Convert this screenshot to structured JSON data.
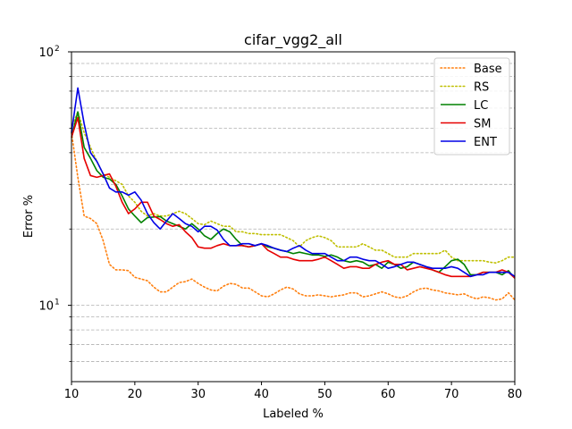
{
  "chart_data": {
    "type": "line",
    "title": "cifar_vgg2_all",
    "xlabel": "Labeled %",
    "ylabel": "Error %",
    "xlim": [
      10,
      80
    ],
    "ylim": [
      5,
      100
    ],
    "yscale": "log",
    "x_ticks": [
      "10",
      "20",
      "30",
      "40",
      "50",
      "60",
      "70",
      "80"
    ],
    "y_ticks": [
      {
        "value": 10,
        "base": "10",
        "exp": "1"
      },
      {
        "value": 100,
        "base": "10",
        "exp": "2"
      }
    ],
    "grid": "horizontal dashed (major and minor)",
    "legend_position": "top-right",
    "series": [
      {
        "name": "Base",
        "color": "#ff7f0e",
        "style": "dotted",
        "x": [
          10,
          11,
          12,
          13,
          14,
          15,
          16,
          17,
          18,
          19,
          20,
          21,
          22,
          23,
          24,
          25,
          26,
          27,
          28,
          29,
          30,
          31,
          32,
          33,
          34,
          35,
          36,
          37,
          38,
          39,
          40,
          41,
          42,
          43,
          44,
          45,
          46,
          47,
          48,
          49,
          50,
          51,
          52,
          53,
          54,
          55,
          56,
          57,
          58,
          59,
          60,
          61,
          62,
          63,
          64,
          65,
          66,
          67,
          68,
          69,
          70,
          71,
          72,
          73,
          74,
          75,
          76,
          77,
          78,
          79,
          80
        ],
        "values": [
          48,
          32,
          22.5,
          22,
          21,
          18,
          14.5,
          13.8,
          13.8,
          13.7,
          12.9,
          12.7,
          12.5,
          11.8,
          11.3,
          11.3,
          11.8,
          12.3,
          12.4,
          12.7,
          12.2,
          11.8,
          11.5,
          11.4,
          11.9,
          12.2,
          12.1,
          11.7,
          11.7,
          11.3,
          10.9,
          10.8,
          11.1,
          11.5,
          11.8,
          11.6,
          11.1,
          10.9,
          10.9,
          11.0,
          10.9,
          10.8,
          10.9,
          11.0,
          11.2,
          11.2,
          10.8,
          10.9,
          11.1,
          11.3,
          11.1,
          10.8,
          10.7,
          10.9,
          11.3,
          11.6,
          11.7,
          11.5,
          11.4,
          11.2,
          11.1,
          11.0,
          11.1,
          10.8,
          10.6,
          10.8,
          10.7,
          10.5,
          10.6,
          11.2,
          10.5
        ]
      },
      {
        "name": "RS",
        "color": "#bfbf00",
        "style": "dotted",
        "x": [
          10,
          11,
          12,
          13,
          14,
          15,
          16,
          17,
          18,
          19,
          20,
          21,
          22,
          23,
          24,
          25,
          26,
          27,
          28,
          29,
          30,
          31,
          32,
          33,
          34,
          35,
          36,
          37,
          38,
          39,
          40,
          41,
          42,
          43,
          44,
          45,
          46,
          47,
          48,
          49,
          50,
          51,
          52,
          53,
          54,
          55,
          56,
          57,
          58,
          59,
          60,
          61,
          62,
          63,
          64,
          65,
          66,
          67,
          68,
          69,
          70,
          71,
          72,
          73,
          74,
          75,
          76,
          77,
          78,
          79,
          80
        ],
        "values": [
          50,
          58,
          48,
          42,
          37,
          33,
          32,
          31,
          30,
          27,
          25.5,
          23.5,
          22.5,
          23,
          22.5,
          22.5,
          23,
          23.5,
          23,
          22,
          21,
          20.8,
          21.5,
          21,
          20.5,
          20.5,
          19.5,
          19.5,
          19.2,
          19.2,
          19,
          19,
          19,
          19,
          18.5,
          18,
          17,
          18,
          18.5,
          18.8,
          18.5,
          18,
          17,
          17,
          17,
          17,
          17.5,
          17,
          16.5,
          16.5,
          16,
          15.5,
          15.5,
          15.5,
          16,
          16,
          16,
          16,
          16,
          16.5,
          15.5,
          15,
          15,
          15,
          15,
          15,
          14.8,
          14.7,
          15,
          15.5,
          15.5
        ]
      },
      {
        "name": "LC",
        "color": "#008000",
        "style": "solid",
        "x": [
          10,
          11,
          12,
          13,
          14,
          15,
          16,
          17,
          18,
          19,
          20,
          21,
          22,
          23,
          24,
          25,
          26,
          27,
          28,
          29,
          30,
          31,
          32,
          33,
          34,
          35,
          36,
          37,
          38,
          39,
          40,
          41,
          42,
          43,
          44,
          45,
          46,
          47,
          48,
          49,
          50,
          51,
          52,
          53,
          54,
          55,
          56,
          57,
          58,
          59,
          60,
          61,
          62,
          63,
          64,
          65,
          66,
          67,
          68,
          69,
          70,
          71,
          72,
          73,
          74,
          75,
          76,
          77,
          78,
          79,
          80
        ],
        "values": [
          46,
          58,
          42,
          38,
          34,
          32,
          31.5,
          30,
          27,
          24,
          22.5,
          21.2,
          22.2,
          22.3,
          22.4,
          21.5,
          21,
          20.5,
          20,
          21,
          20,
          18.8,
          18.2,
          19.2,
          20,
          19.5,
          18.2,
          17.2,
          17,
          17.2,
          17.5,
          17,
          16.8,
          16.5,
          16.3,
          16,
          16.2,
          16,
          15.8,
          15.8,
          15.6,
          15.8,
          15.5,
          15,
          14.8,
          15,
          14.8,
          14.3,
          14.5,
          14,
          14.8,
          14.5,
          14,
          14.2,
          14.8,
          14.5,
          14.2,
          13.8,
          13.5,
          14.2,
          15,
          15.2,
          14.5,
          13.2,
          13.2,
          13.5,
          13.5,
          13.5,
          13.2,
          13.7,
          12.8
        ]
      },
      {
        "name": "SM",
        "color": "#e60000",
        "style": "solid",
        "x": [
          10,
          11,
          12,
          13,
          14,
          15,
          16,
          17,
          18,
          19,
          20,
          21,
          22,
          23,
          24,
          25,
          26,
          27,
          28,
          29,
          30,
          31,
          32,
          33,
          34,
          35,
          36,
          37,
          38,
          39,
          40,
          41,
          42,
          43,
          44,
          45,
          46,
          47,
          48,
          49,
          50,
          51,
          52,
          53,
          54,
          55,
          56,
          57,
          58,
          59,
          60,
          61,
          62,
          63,
          64,
          65,
          66,
          67,
          68,
          69,
          70,
          71,
          72,
          73,
          74,
          75,
          76,
          77,
          78,
          79,
          80
        ],
        "values": [
          46,
          55,
          38,
          32.5,
          32,
          32.5,
          33,
          29.5,
          25.5,
          23,
          24,
          25.5,
          25.5,
          22.5,
          21.8,
          21,
          20.5,
          20.8,
          19.5,
          18.5,
          17,
          16.8,
          16.8,
          17.2,
          17.5,
          17.2,
          17.2,
          17.2,
          17,
          17.2,
          17.5,
          16.5,
          16,
          15.5,
          15.5,
          15.2,
          15,
          15,
          15,
          15.2,
          15.5,
          15,
          14.5,
          14,
          14.2,
          14.2,
          14,
          14,
          14.5,
          14.8,
          15,
          14.5,
          14.5,
          13.8,
          14,
          14.2,
          14,
          13.8,
          13.5,
          13.2,
          13,
          13,
          13,
          13,
          13.2,
          13.5,
          13.5,
          13.5,
          13.8,
          13.5,
          12.8
        ]
      },
      {
        "name": "ENT",
        "color": "#0000e6",
        "style": "solid",
        "x": [
          10,
          11,
          12,
          13,
          14,
          15,
          16,
          17,
          18,
          19,
          20,
          21,
          22,
          23,
          24,
          25,
          26,
          27,
          28,
          29,
          30,
          31,
          32,
          33,
          34,
          35,
          36,
          37,
          38,
          39,
          40,
          41,
          42,
          43,
          44,
          45,
          46,
          47,
          48,
          49,
          50,
          51,
          52,
          53,
          54,
          55,
          56,
          57,
          58,
          59,
          60,
          61,
          62,
          63,
          64,
          65,
          66,
          67,
          68,
          69,
          70,
          71,
          72,
          73,
          74,
          75,
          76,
          77,
          78,
          79,
          80
        ],
        "values": [
          48,
          72,
          52,
          40,
          37,
          33,
          29,
          28,
          28,
          27.2,
          28,
          26,
          23,
          21.2,
          20,
          21.5,
          23,
          22,
          21,
          20.5,
          19.5,
          20.5,
          20.5,
          19.8,
          18.2,
          17.2,
          17.2,
          17.5,
          17.5,
          17.2,
          17.5,
          17.2,
          16.8,
          16.5,
          16.3,
          16.8,
          17.2,
          16.5,
          16,
          16,
          16,
          15.5,
          15,
          15,
          15.5,
          15.5,
          15.2,
          15,
          15,
          14.5,
          14,
          14.2,
          14.5,
          14.8,
          14.8,
          14.5,
          14.2,
          14,
          14,
          14,
          14.2,
          14,
          13.5,
          13,
          13.2,
          13.2,
          13.5,
          13.5,
          13.5,
          13.5,
          13
        ]
      }
    ]
  }
}
